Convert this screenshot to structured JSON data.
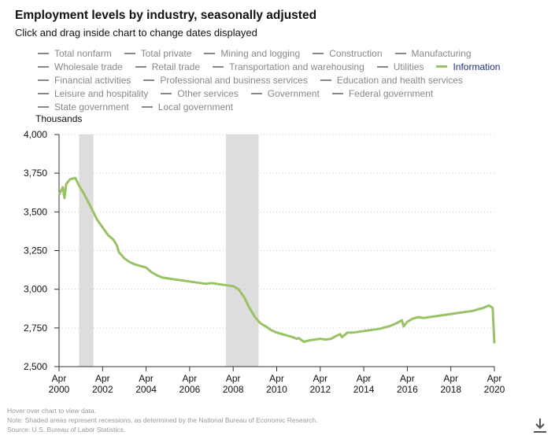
{
  "title": "Employment levels by industry, seasonally adjusted",
  "subtitle": "Click and drag inside chart to change dates displayed",
  "legend": [
    {
      "label": "Total nonfarm",
      "active": false
    },
    {
      "label": "Total private",
      "active": false
    },
    {
      "label": "Mining and logging",
      "active": false
    },
    {
      "label": "Construction",
      "active": false
    },
    {
      "label": "Manufacturing",
      "active": false
    },
    {
      "label": "Wholesale trade",
      "active": false
    },
    {
      "label": "Retail trade",
      "active": false
    },
    {
      "label": "Transportation and warehousing",
      "active": false
    },
    {
      "label": "Utilities",
      "active": false
    },
    {
      "label": "Information",
      "active": true
    },
    {
      "label": "Financial activities",
      "active": false
    },
    {
      "label": "Professional and business services",
      "active": false
    },
    {
      "label": "Education and health services",
      "active": false
    },
    {
      "label": "Leisure and hospitality",
      "active": false
    },
    {
      "label": "Other services",
      "active": false
    },
    {
      "label": "Government",
      "active": false
    },
    {
      "label": "Federal government",
      "active": false
    },
    {
      "label": "State government",
      "active": false
    },
    {
      "label": "Local government",
      "active": false
    }
  ],
  "footnotes": [
    "Hover over chart to view data.",
    "Note: Shaded areas represent recessions, as determined by the National Bureau of Economic Research.",
    "Source: U.S. Bureau of Labor Statistics."
  ],
  "colors": {
    "series": "#99c266",
    "recession": "#dddddd",
    "grid": "#cccccc",
    "axis": "#333333"
  },
  "icons": {
    "download": "download-icon"
  },
  "chart_data": {
    "type": "line",
    "ylabel": "Thousands",
    "ylim": [
      2500,
      4000
    ],
    "yticks": [
      2500,
      2750,
      3000,
      3250,
      3500,
      3750,
      4000
    ],
    "ytick_labels": [
      "2,500",
      "2,750",
      "3,000",
      "3,250",
      "3,500",
      "3,750",
      "4,000"
    ],
    "xlim": [
      2000.25,
      2020.25
    ],
    "xticks": [
      2000.25,
      2002.25,
      2004.25,
      2006.25,
      2008.25,
      2010.25,
      2012.25,
      2014.25,
      2016.25,
      2018.25,
      2020.25
    ],
    "xtick_labels": [
      [
        "Apr",
        "2000"
      ],
      [
        "Apr",
        "2002"
      ],
      [
        "Apr",
        "2004"
      ],
      [
        "Apr",
        "2006"
      ],
      [
        "Apr",
        "2008"
      ],
      [
        "Apr",
        "2010"
      ],
      [
        "Apr",
        "2012"
      ],
      [
        "Apr",
        "2014"
      ],
      [
        "Apr",
        "2016"
      ],
      [
        "Apr",
        "2018"
      ],
      [
        "Apr",
        "2020"
      ]
    ],
    "grid": true,
    "recessions": [
      [
        2001.17,
        2001.83
      ],
      [
        2007.92,
        2009.42
      ]
    ],
    "series": [
      {
        "name": "Information",
        "x": [
          2000.25,
          2000.42,
          2000.5,
          2000.58,
          2000.75,
          2001.0,
          2001.17,
          2001.42,
          2001.75,
          2002.0,
          2002.25,
          2002.5,
          2002.75,
          2002.92,
          2003.0,
          2003.25,
          2003.5,
          2003.75,
          2004.0,
          2004.25,
          2004.5,
          2004.75,
          2005.0,
          2005.25,
          2005.5,
          2005.75,
          2006.0,
          2006.25,
          2006.5,
          2006.75,
          2007.0,
          2007.25,
          2007.5,
          2007.75,
          2008.0,
          2008.25,
          2008.5,
          2008.75,
          2009.0,
          2009.25,
          2009.5,
          2009.75,
          2010.0,
          2010.25,
          2010.5,
          2010.75,
          2011.0,
          2011.17,
          2011.25,
          2011.5,
          2011.75,
          2012.0,
          2012.25,
          2012.5,
          2012.75,
          2013.0,
          2013.17,
          2013.25,
          2013.5,
          2013.75,
          2014.0,
          2014.25,
          2014.5,
          2014.75,
          2015.0,
          2015.25,
          2015.5,
          2015.75,
          2016.0,
          2016.08,
          2016.25,
          2016.5,
          2016.75,
          2017.0,
          2017.25,
          2017.5,
          2017.75,
          2018.0,
          2018.25,
          2018.5,
          2018.75,
          2019.0,
          2019.25,
          2019.5,
          2019.75,
          2020.0,
          2020.17,
          2020.25
        ],
        "values": [
          3610,
          3660,
          3590,
          3680,
          3710,
          3720,
          3670,
          3610,
          3520,
          3450,
          3400,
          3350,
          3320,
          3280,
          3240,
          3200,
          3175,
          3160,
          3150,
          3140,
          3110,
          3090,
          3075,
          3070,
          3065,
          3060,
          3055,
          3050,
          3045,
          3040,
          3035,
          3040,
          3035,
          3030,
          3025,
          3020,
          3000,
          2950,
          2880,
          2820,
          2780,
          2760,
          2735,
          2720,
          2710,
          2700,
          2690,
          2680,
          2685,
          2660,
          2670,
          2675,
          2680,
          2675,
          2680,
          2700,
          2710,
          2690,
          2720,
          2720,
          2725,
          2730,
          2735,
          2740,
          2745,
          2755,
          2765,
          2780,
          2800,
          2760,
          2790,
          2810,
          2820,
          2815,
          2820,
          2825,
          2830,
          2835,
          2840,
          2845,
          2850,
          2855,
          2860,
          2870,
          2880,
          2895,
          2880,
          2650
        ]
      }
    ]
  }
}
